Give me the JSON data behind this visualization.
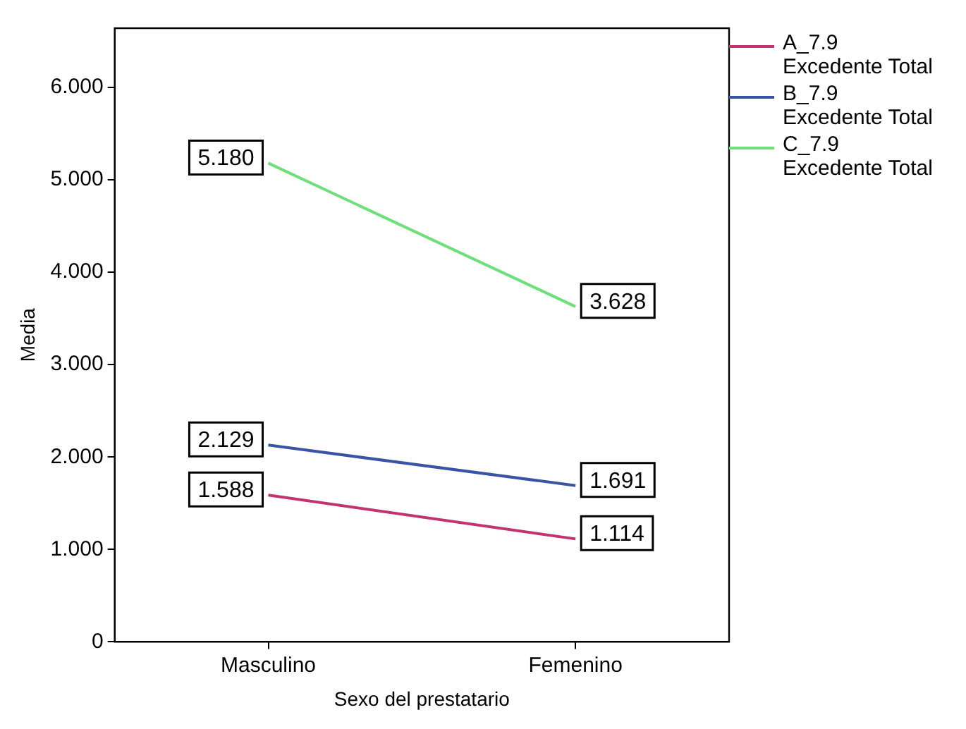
{
  "chart_data": {
    "type": "line",
    "xlabel": "Sexo del prestatario",
    "ylabel": "Media",
    "categories": [
      "Masculino",
      "Femenino"
    ],
    "series": [
      {
        "name": "A_7.9 Excedente Total",
        "color": "#c2346f",
        "values": [
          1.588,
          1.114
        ],
        "value_labels": [
          "1.588",
          "1.114"
        ]
      },
      {
        "name": "B_7.9 Excedente Total",
        "color": "#3a54a4",
        "values": [
          2.129,
          1.691
        ],
        "value_labels": [
          "2.129",
          "1.691"
        ]
      },
      {
        "name": "C_7.9 Excedente Total",
        "color": "#6ee07a",
        "values": [
          5.18,
          3.628
        ],
        "value_labels": [
          "5.180",
          "3.628"
        ]
      }
    ],
    "ylim": [
      0,
      6.64
    ],
    "yticks": [
      0,
      {
        "value": 1,
        "label": "1.000"
      },
      {
        "value": 2,
        "label": "2.000"
      },
      {
        "value": 3,
        "label": "3.000"
      },
      {
        "value": 4,
        "label": "4.000"
      },
      {
        "value": 5,
        "label": "5.000"
      },
      {
        "value": 6,
        "label": "6.000"
      }
    ],
    "grid": false,
    "legend": "right",
    "marker": "none",
    "line_style": "solid"
  }
}
